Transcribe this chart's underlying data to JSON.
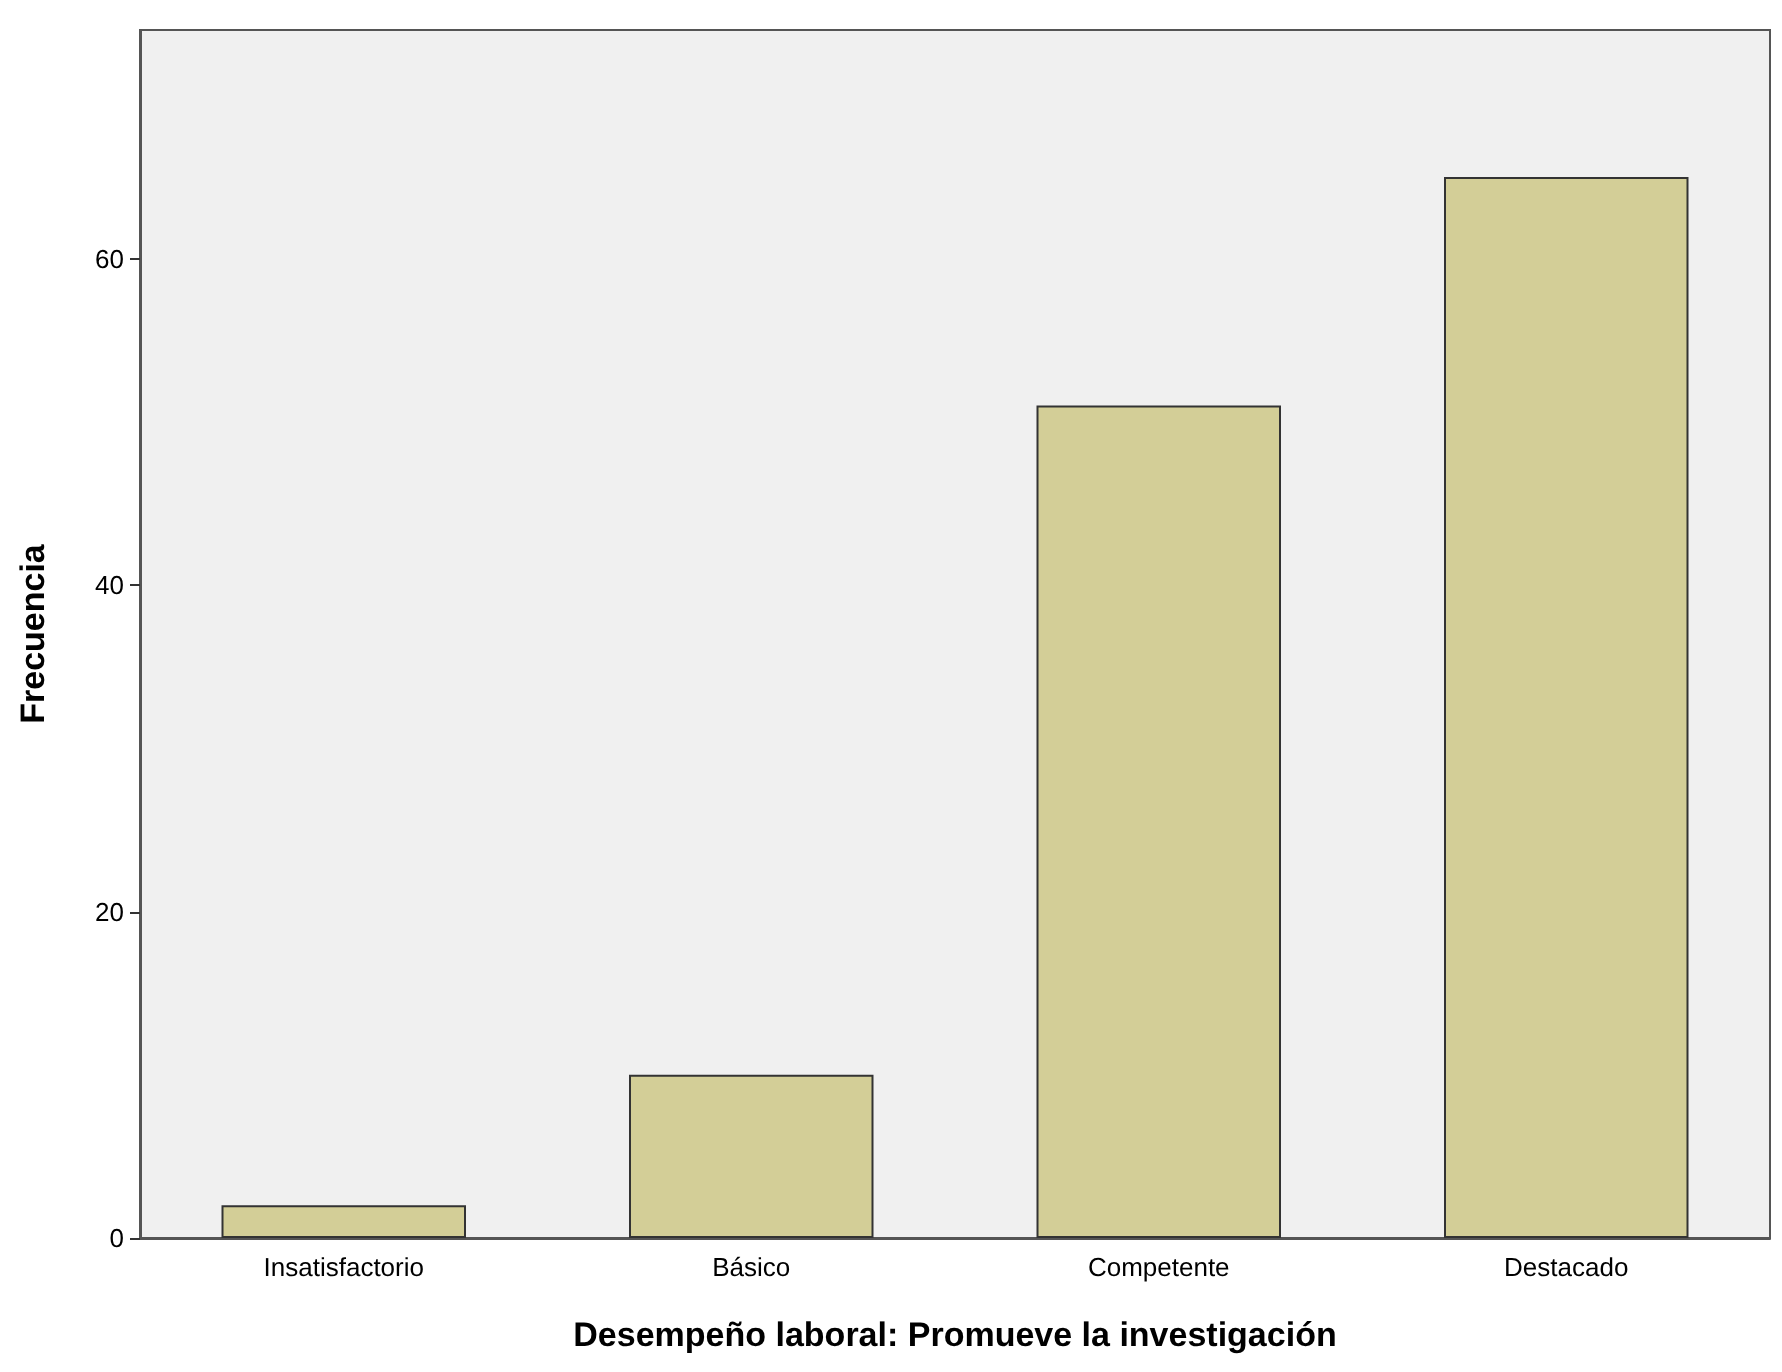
{
  "chart_data": {
    "type": "bar",
    "xlabel": "Desempeño laboral: Promueve la investigación",
    "ylabel": "Frecuencia",
    "categories": [
      "Insatisfactorio",
      "Básico",
      "Competente",
      "Destacado"
    ],
    "values": [
      2,
      10,
      51,
      65
    ],
    "color": "#d3ce97",
    "ylim": [
      0,
      74
    ],
    "yticks": [
      0,
      20,
      40,
      60
    ],
    "grid": false
  }
}
